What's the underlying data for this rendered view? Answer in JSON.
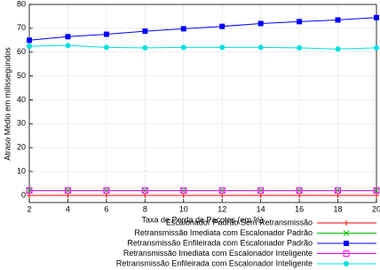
{
  "chart_data": {
    "type": "line",
    "x_label": "Taxa de Perda de Pacotes (em %)",
    "y_label": "Atraso Médio em milissegundos",
    "x": [
      2,
      4,
      6,
      8,
      10,
      12,
      14,
      16,
      18,
      20
    ],
    "xlim": [
      2,
      20
    ],
    "xticks": [
      2,
      4,
      6,
      8,
      10,
      12,
      14,
      16,
      18,
      20
    ],
    "ylim": [
      -3,
      80
    ],
    "yticks": [
      0,
      10,
      20,
      30,
      40,
      50,
      60,
      70,
      80
    ],
    "grid": true,
    "legend": "below",
    "series": [
      {
        "name": "Escalonador Padrão Sem Retransmissão",
        "color": "#ff0000",
        "marker": "plus",
        "values": [
          0,
          0,
          0,
          0,
          0,
          0,
          0,
          0,
          0,
          0
        ]
      },
      {
        "name": "Retransmissão Imediata com Escalonador Padrão",
        "color": "#00c000",
        "marker": "cross",
        "values": [
          2,
          2,
          2,
          2,
          2,
          2,
          2,
          2,
          2,
          2
        ]
      },
      {
        "name": "Retransmissão Enfileirada com Escalonador Padrão",
        "color": "#0000ff",
        "marker": "square-filled",
        "values": [
          65,
          66.5,
          67.5,
          68.8,
          69.8,
          70.8,
          72,
          72.8,
          73.5,
          74.5
        ]
      },
      {
        "name": "Retransmissão Imediata com Escalonador Inteligente",
        "color": "#ff00ff",
        "marker": "square-open",
        "values": [
          2,
          2,
          2,
          2,
          2,
          2,
          2,
          2,
          2,
          2
        ]
      },
      {
        "name": "Retransmissão Enfileirada com Escalonador Inteligente",
        "color": "#00e0e0",
        "marker": "circle-filled",
        "values": [
          62.5,
          62.8,
          62,
          61.8,
          62,
          62,
          62,
          61.8,
          61.3,
          61.8
        ]
      }
    ]
  }
}
